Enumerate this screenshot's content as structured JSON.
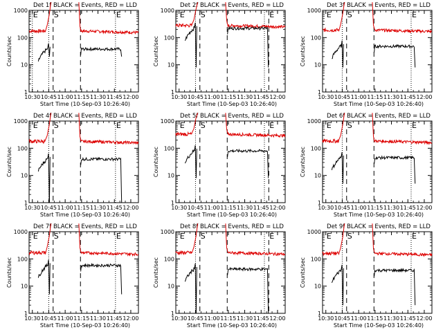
{
  "chart_data": {
    "type": "line",
    "y_scale": "log",
    "ylim": [
      1,
      1000
    ],
    "xlim_minutes": [
      -3,
      97
    ],
    "ylabel": "Counts/sec",
    "xlabel": "Start Time (10-Sep-03 10:26:40)",
    "x_ticks": [
      "10:30",
      "10:45",
      "11:00",
      "11:15",
      "11:30",
      "11:45",
      "12:00"
    ],
    "x_tick_minutes": [
      0,
      15,
      30,
      45,
      60,
      75,
      90
    ],
    "y_ticks": [
      "1",
      "10",
      "100",
      "1000"
    ],
    "marker_labels": {
      "start": "S",
      "end": "E"
    },
    "colors": {
      "events": "#000000",
      "lld": "#dd0000"
    },
    "panels": [
      {
        "title": "Det 1f BLACK = Events, RED = LLD",
        "events_level": 38,
        "lld_level": 175,
        "dip_min": 20,
        "vlines": [
          {
            "t": 0,
            "s": "dot"
          },
          {
            "t": 15,
            "s": "dot"
          },
          {
            "t": 19,
            "s": "dash"
          },
          {
            "t": 44,
            "s": "dash"
          },
          {
            "t": 76,
            "s": "dot"
          }
        ],
        "labels": [
          {
            "t": 0,
            "l": "E"
          },
          {
            "t": 19,
            "l": "S"
          },
          {
            "t": 76,
            "l": "E"
          }
        ]
      },
      {
        "title": "Det 2f BLACK = Events, RED = LLD",
        "events_level": 220,
        "lld_level": 280,
        "dip_min": 8,
        "vlines": [
          {
            "t": 15,
            "s": "dot"
          },
          {
            "t": 19,
            "s": "dash"
          },
          {
            "t": 44,
            "s": "dash"
          },
          {
            "t": 78,
            "s": "dot"
          },
          {
            "t": 82,
            "s": "dash"
          }
        ],
        "labels": [
          {
            "t": 0,
            "l": "E"
          },
          {
            "t": 19,
            "l": "S"
          },
          {
            "t": 82,
            "l": "E"
          }
        ]
      },
      {
        "title": "Det 3f BLACK = Events, RED = LLD",
        "events_level": 48,
        "lld_level": 190,
        "dip_min": 8,
        "vlines": [
          {
            "t": 15,
            "s": "dot"
          },
          {
            "t": 19,
            "s": "dash"
          },
          {
            "t": 44,
            "s": "dash"
          },
          {
            "t": 78,
            "s": "dot"
          }
        ],
        "labels": [
          {
            "t": 0,
            "l": "E"
          },
          {
            "t": 19,
            "l": "S"
          },
          {
            "t": 78,
            "l": "E"
          }
        ]
      },
      {
        "title": "Det 4f BLACK = Events, RED = LLD",
        "events_level": 40,
        "lld_level": 180,
        "dip_min": 1,
        "vlines": [
          {
            "t": 15,
            "s": "dot"
          },
          {
            "t": 19,
            "s": "dash"
          },
          {
            "t": 44,
            "s": "dash"
          },
          {
            "t": 76,
            "s": "dot"
          }
        ],
        "labels": [
          {
            "t": 0,
            "l": "E"
          },
          {
            "t": 19,
            "l": "S"
          },
          {
            "t": 76,
            "l": "E"
          }
        ]
      },
      {
        "title": "Det 5f BLACK = Events, RED = LLD",
        "events_level": 80,
        "lld_level": 330,
        "dip_min": 8,
        "vlines": [
          {
            "t": 15,
            "s": "dot"
          },
          {
            "t": 19,
            "s": "dash"
          },
          {
            "t": 44,
            "s": "dash"
          },
          {
            "t": 78,
            "s": "dot"
          },
          {
            "t": 82,
            "s": "dash"
          }
        ],
        "labels": [
          {
            "t": 0,
            "l": "E"
          },
          {
            "t": 19,
            "l": "S"
          },
          {
            "t": 82,
            "l": "E"
          }
        ]
      },
      {
        "title": "Det 6f BLACK = Events, RED = LLD",
        "events_level": 45,
        "lld_level": 185,
        "dip_min": 5,
        "vlines": [
          {
            "t": 15,
            "s": "dot"
          },
          {
            "t": 19,
            "s": "dash"
          },
          {
            "t": 44,
            "s": "dash"
          },
          {
            "t": 78,
            "s": "dot"
          }
        ],
        "labels": [
          {
            "t": 0,
            "l": "E"
          },
          {
            "t": 19,
            "l": "S"
          },
          {
            "t": 78,
            "l": "E"
          }
        ]
      },
      {
        "title": "Det 7f BLACK = Events, RED = LLD",
        "events_level": 58,
        "lld_level": 170,
        "dip_min": 5,
        "vlines": [
          {
            "t": 15,
            "s": "dot"
          },
          {
            "t": 19,
            "s": "dash"
          },
          {
            "t": 44,
            "s": "dash"
          },
          {
            "t": 76,
            "s": "dot"
          }
        ],
        "labels": [
          {
            "t": 0,
            "l": "E"
          },
          {
            "t": 19,
            "l": "S"
          },
          {
            "t": 76,
            "l": "E"
          }
        ]
      },
      {
        "title": "Det 8f BLACK = Events, RED = LLD",
        "events_level": 42,
        "lld_level": 170,
        "dip_min": 1,
        "vlines": [
          {
            "t": 15,
            "s": "dot"
          },
          {
            "t": 19,
            "s": "dash"
          },
          {
            "t": 44,
            "s": "dash"
          },
          {
            "t": 78,
            "s": "dot"
          },
          {
            "t": 82,
            "s": "dash"
          }
        ],
        "labels": [
          {
            "t": 0,
            "l": "E"
          },
          {
            "t": 19,
            "l": "S"
          },
          {
            "t": 82,
            "l": "E"
          }
        ]
      },
      {
        "title": "Det 9f BLACK = Events, RED = LLD",
        "events_level": 38,
        "lld_level": 160,
        "dip_min": 2,
        "vlines": [
          {
            "t": 15,
            "s": "dot"
          },
          {
            "t": 19,
            "s": "dash"
          },
          {
            "t": 44,
            "s": "dash"
          },
          {
            "t": 78,
            "s": "dot"
          }
        ],
        "labels": [
          {
            "t": 0,
            "l": "E"
          },
          {
            "t": 19,
            "l": "S"
          },
          {
            "t": 78,
            "l": "E"
          }
        ]
      }
    ]
  }
}
